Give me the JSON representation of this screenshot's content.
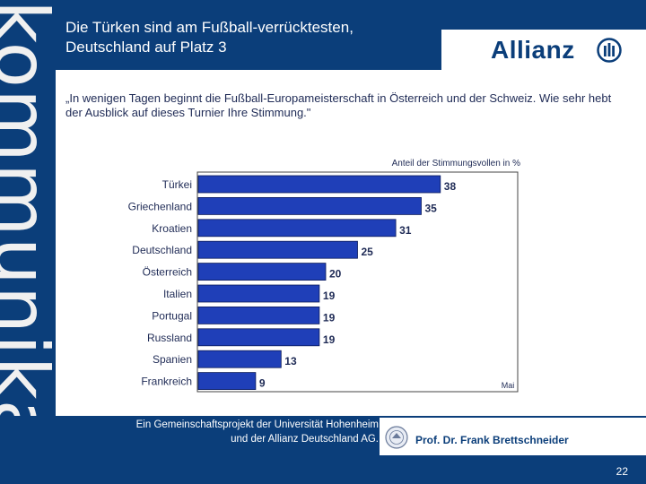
{
  "side_word": "kommunikation",
  "header": {
    "title_line1": "Die Türken sind am Fußball-verrücktesten,",
    "title_line2": "Deutschland auf Platz 3",
    "logo_text": "Allianz"
  },
  "quote": "„In wenigen Tagen beginnt die Fußball-Europameisterschaft in Österreich und der Schweiz. Wie sehr hebt der Ausblick auf dieses Turnier Ihre Stimmung.\"",
  "chart_data": {
    "type": "bar",
    "orientation": "horizontal",
    "title": "Anteil der Stimmungsvollen in %",
    "categories": [
      "Türkei",
      "Griechenland",
      "Kroatien",
      "Deutschland",
      "Österreich",
      "Italien",
      "Portugal",
      "Russland",
      "Spanien",
      "Frankreich"
    ],
    "values": [
      38,
      35,
      31,
      25,
      20,
      19,
      19,
      19,
      13,
      9
    ],
    "annotation": "Mai",
    "xlim": [
      0,
      50
    ],
    "colors": {
      "bar": "#1f3fb8",
      "bar_edge": "#0a1a5a"
    }
  },
  "footer": {
    "project_line1": "Ein Gemeinschaftsprojekt der Universität Hohenheim",
    "project_line2": "und der Allianz Deutschland AG.",
    "professor": "Prof. Dr. Frank Brettschneider",
    "page_number": "22"
  },
  "colors": {
    "brand_blue": "#0b3e7a",
    "text_dark": "#1e2a55"
  }
}
